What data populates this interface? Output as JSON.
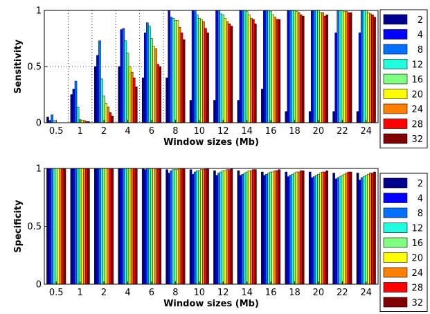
{
  "chart_data": [
    {
      "type": "bar",
      "xlabel": "Window sizes (Mb)",
      "ylabel": "Sensitivity",
      "ylim": [
        0,
        1
      ],
      "yticks": [
        "0",
        "0.5",
        "1"
      ],
      "grid": "dotted, first five groups",
      "legend_position": "right",
      "categories": [
        "0.5",
        "1",
        "2",
        "4",
        "6",
        "8",
        "10",
        "12",
        "14",
        "16",
        "18",
        "20",
        "22",
        "24"
      ],
      "series": [
        {
          "name": "2",
          "color": "#00008F",
          "values": [
            0.05,
            0.25,
            0.5,
            0.5,
            0.4,
            0.4,
            0.2,
            0.2,
            0.2,
            0.3,
            0.1,
            0.1,
            0.1,
            0.1
          ]
        },
        {
          "name": "4",
          "color": "#0000FF",
          "values": [
            0.02,
            0.3,
            0.6,
            0.83,
            0.8,
            1.0,
            1.0,
            1.0,
            1.0,
            1.0,
            1.0,
            1.0,
            0.8,
            0.8
          ]
        },
        {
          "name": "8",
          "color": "#0070FF",
          "values": [
            0.07,
            0.37,
            0.73,
            0.84,
            0.89,
            0.94,
            1.0,
            1.0,
            1.0,
            1.0,
            1.0,
            1.0,
            1.0,
            1.0
          ]
        },
        {
          "name": "12",
          "color": "#20FFDF",
          "values": [
            0.02,
            0.14,
            0.39,
            0.73,
            0.86,
            0.93,
            0.96,
            0.97,
            1.0,
            1.0,
            1.0,
            1.0,
            1.0,
            1.0
          ]
        },
        {
          "name": "16",
          "color": "#80FF80",
          "values": [
            0.0,
            0.03,
            0.24,
            0.62,
            0.75,
            0.91,
            0.93,
            0.96,
            0.99,
            0.99,
            1.0,
            1.0,
            1.0,
            1.0
          ]
        },
        {
          "name": "20",
          "color": "#FFFF00",
          "values": [
            0.0,
            0.02,
            0.17,
            0.5,
            0.68,
            0.91,
            0.92,
            0.93,
            0.96,
            0.96,
            0.99,
            0.98,
            0.99,
            0.98
          ]
        },
        {
          "name": "24",
          "color": "#FF8000",
          "values": [
            0.0,
            0.02,
            0.14,
            0.45,
            0.66,
            0.85,
            0.9,
            0.9,
            0.93,
            0.94,
            0.98,
            0.98,
            0.99,
            0.97
          ]
        },
        {
          "name": "28",
          "color": "#FF0000",
          "values": [
            0.0,
            0.01,
            0.09,
            0.4,
            0.52,
            0.8,
            0.84,
            0.88,
            0.92,
            0.92,
            0.96,
            0.95,
            0.98,
            0.96
          ]
        },
        {
          "name": "32",
          "color": "#800000",
          "values": [
            0.0,
            0.01,
            0.06,
            0.32,
            0.5,
            0.74,
            0.8,
            0.86,
            0.88,
            0.92,
            0.95,
            0.96,
            0.98,
            0.94
          ]
        }
      ]
    },
    {
      "type": "bar",
      "xlabel": "Window sizes (Mb)",
      "ylabel": "Specificity",
      "ylim": [
        0,
        1
      ],
      "yticks": [
        "0",
        "0.5",
        "1"
      ],
      "grid": "none",
      "legend_position": "right",
      "categories": [
        "0.5",
        "1",
        "2",
        "4",
        "6",
        "8",
        "10",
        "12",
        "14",
        "16",
        "18",
        "20",
        "22",
        "24"
      ],
      "series": [
        {
          "name": "2",
          "color": "#00008F",
          "values": [
            1.0,
            1.0,
            1.0,
            1.0,
            1.0,
            0.99,
            0.99,
            0.98,
            0.98,
            0.97,
            0.97,
            0.97,
            0.96,
            0.96
          ]
        },
        {
          "name": "4",
          "color": "#0000FF",
          "values": [
            1.0,
            1.0,
            1.0,
            1.0,
            0.99,
            0.96,
            0.95,
            0.94,
            0.94,
            0.94,
            0.93,
            0.92,
            0.91,
            0.9
          ]
        },
        {
          "name": "8",
          "color": "#0070FF",
          "values": [
            1.0,
            1.0,
            1.0,
            1.0,
            1.0,
            0.98,
            0.97,
            0.96,
            0.95,
            0.95,
            0.94,
            0.93,
            0.92,
            0.92
          ]
        },
        {
          "name": "12",
          "color": "#20FFDF",
          "values": [
            1.0,
            1.0,
            1.0,
            1.0,
            1.0,
            0.99,
            0.98,
            0.97,
            0.96,
            0.96,
            0.95,
            0.94,
            0.93,
            0.93
          ]
        },
        {
          "name": "16",
          "color": "#80FF80",
          "values": [
            1.0,
            1.0,
            1.0,
            1.0,
            1.0,
            0.99,
            0.98,
            0.98,
            0.97,
            0.97,
            0.96,
            0.95,
            0.94,
            0.94
          ]
        },
        {
          "name": "20",
          "color": "#FFFF00",
          "values": [
            1.0,
            1.0,
            1.0,
            1.0,
            1.0,
            0.99,
            0.99,
            0.98,
            0.98,
            0.97,
            0.97,
            0.96,
            0.95,
            0.95
          ]
        },
        {
          "name": "24",
          "color": "#FF8000",
          "values": [
            1.0,
            1.0,
            1.0,
            1.0,
            1.0,
            1.0,
            0.99,
            0.99,
            0.98,
            0.98,
            0.97,
            0.97,
            0.96,
            0.96
          ]
        },
        {
          "name": "28",
          "color": "#FF0000",
          "values": [
            1.0,
            1.0,
            1.0,
            1.0,
            1.0,
            1.0,
            1.0,
            0.99,
            0.99,
            0.98,
            0.98,
            0.97,
            0.97,
            0.96
          ]
        },
        {
          "name": "32",
          "color": "#800000",
          "values": [
            1.0,
            1.0,
            1.0,
            1.0,
            1.0,
            1.0,
            1.0,
            1.0,
            0.99,
            0.99,
            0.98,
            0.98,
            0.97,
            0.97
          ]
        }
      ]
    }
  ]
}
